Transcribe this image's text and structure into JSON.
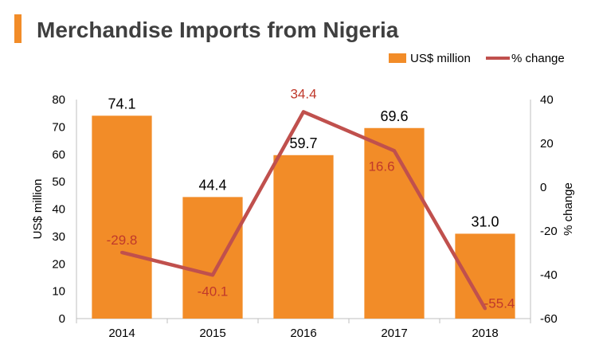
{
  "title": "Merchandise Imports from Nigeria",
  "colors": {
    "accent": "#f28c28",
    "bar": "#f28c28",
    "line": "#c0504d",
    "line_label": "#c0392b"
  },
  "chart_data": {
    "type": "bar",
    "categories": [
      "2014",
      "2015",
      "2016",
      "2017",
      "2018"
    ],
    "series": [
      {
        "name": "US$ million",
        "type": "bar",
        "axis": "left",
        "values": [
          74.1,
          44.4,
          59.7,
          69.6,
          31.0
        ]
      },
      {
        "name": "% change",
        "type": "line",
        "axis": "right",
        "values": [
          -29.8,
          -40.1,
          34.4,
          16.6,
          -55.4
        ]
      }
    ],
    "value_labels_bar": [
      "74.1",
      "44.4",
      "59.7",
      "69.6",
      "31.0"
    ],
    "value_labels_line": [
      "-29.8",
      "-40.1",
      "34.4",
      "16.6",
      "-55.4"
    ],
    "ylabel": "US$ million",
    "y2label": "% change",
    "ylim": [
      0,
      80
    ],
    "y2lim": [
      -60,
      40
    ],
    "yticks": [
      "0",
      "10",
      "20",
      "30",
      "40",
      "50",
      "60",
      "70",
      "80"
    ],
    "y2ticks": [
      "-60",
      "-40",
      "-20",
      "0",
      "20",
      "40"
    ],
    "legend_position": "top-right",
    "grid": false
  }
}
